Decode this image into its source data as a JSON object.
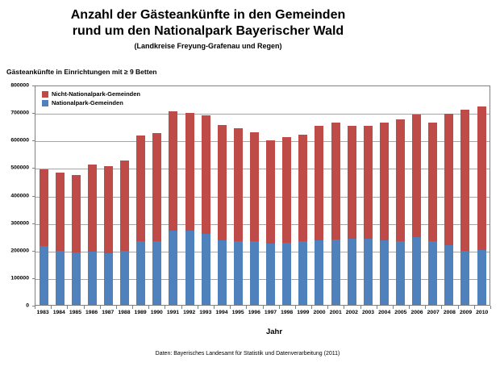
{
  "title": {
    "line1": "Anzahl der Gästeankünfte in den Gemeinden",
    "line2": "rund um den Nationalpark Bayerischer Wald",
    "subtitle": "(Landkreise Freyung-Grafenau und Regen)"
  },
  "axis_header": "Gästeankünfte in Einrichtungen mit ≥ 9 Betten",
  "axis_title_x": "Jahr",
  "footer": "Daten: Bayerisches Landesamt für Statistik und Datenverarbeitung (2011)",
  "legend": [
    {
      "label": "Nicht-Nationalpark-Gemeinden",
      "color": "#BE4B48"
    },
    {
      "label": "Nationalpark-Gemeinden",
      "color": "#4F81BD"
    }
  ],
  "colors": {
    "non_nationalpark_bar": "#BE4B48",
    "nationalpark_bar": "#4F81BD",
    "gridline": "#A6A6A6",
    "plot_border": "#808080",
    "tick": "#808080"
  },
  "chart_data": {
    "type": "bar",
    "stacked": true,
    "grid": true,
    "legend_position": "top-left-inside",
    "xlabel": "Jahr",
    "ylabel": "",
    "ylim": [
      0,
      800000
    ],
    "ytick_step": 100000,
    "categories": [
      1983,
      1984,
      1985,
      1986,
      1987,
      1988,
      1989,
      1990,
      1991,
      1992,
      1993,
      1994,
      1995,
      1996,
      1997,
      1998,
      1999,
      2000,
      2001,
      2002,
      2003,
      2004,
      2005,
      2006,
      2007,
      2008,
      2009,
      2010
    ],
    "series": [
      {
        "name": "Nationalpark-Gemeinden",
        "color": "#4F81BD",
        "values": [
          216000,
          197000,
          192000,
          195000,
          190000,
          199000,
          234000,
          232000,
          271000,
          271000,
          261000,
          237000,
          234000,
          232000,
          225000,
          227000,
          232000,
          237000,
          240000,
          241000,
          243000,
          237000,
          234000,
          249000,
          232000,
          219000,
          197000,
          200000
        ]
      },
      {
        "name": "Nicht-Nationalpark-Gemeinden",
        "color": "#BE4B48",
        "values": [
          279000,
          286000,
          283000,
          320000,
          317000,
          330000,
          386000,
          396000,
          439000,
          433000,
          434000,
          421000,
          414000,
          400000,
          377000,
          388000,
          390000,
          418000,
          426000,
          413000,
          411000,
          431000,
          446000,
          449000,
          434000,
          481000,
          518000,
          527000
        ]
      }
    ]
  }
}
